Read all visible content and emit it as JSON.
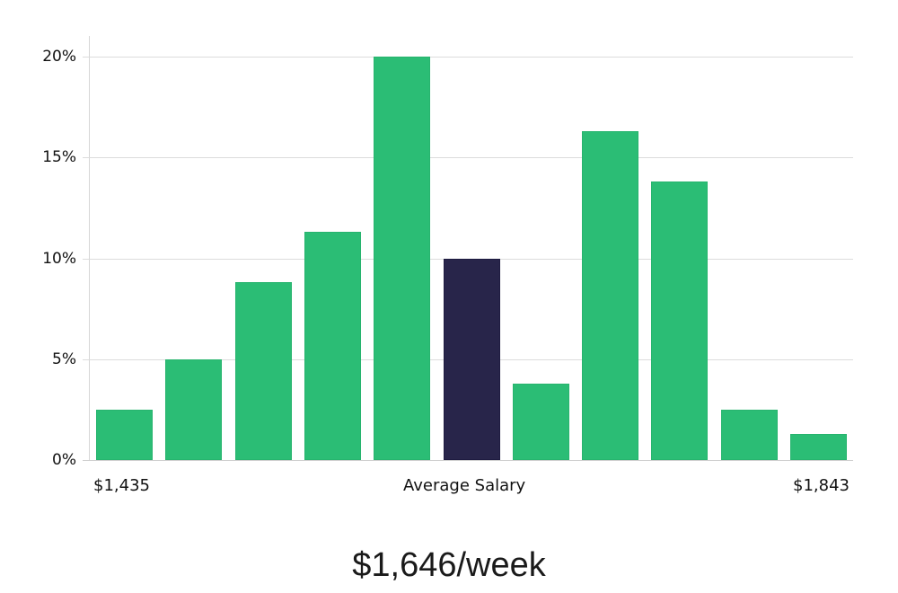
{
  "chart_data": {
    "type": "bar",
    "title": "",
    "xlabel": "Average Salary",
    "ylabel": "",
    "categories": [
      "1",
      "2",
      "3",
      "4",
      "5",
      "6",
      "7",
      "8",
      "9",
      "10",
      "11"
    ],
    "values": [
      2.5,
      5.0,
      8.8,
      11.3,
      20.0,
      10.0,
      3.8,
      16.3,
      13.8,
      2.5,
      1.3
    ],
    "highlight_index": 5,
    "ylim": [
      0,
      20
    ],
    "yticks": [
      "0%",
      "5%",
      "10%",
      "15%",
      "20%"
    ],
    "ytick_values": [
      0,
      5,
      10,
      15,
      20
    ],
    "x_range_labels": {
      "min": "$1,435",
      "center": "Average Salary",
      "max": "$1,843"
    },
    "grid": true,
    "colors": {
      "bar": "#2bbd75",
      "highlight": "#28254a",
      "grid": "#dcdcdc"
    }
  },
  "labels": {
    "x_min": "$1,435",
    "x_center": "Average Salary",
    "x_max": "$1,843",
    "headline": "$1,646/week"
  }
}
